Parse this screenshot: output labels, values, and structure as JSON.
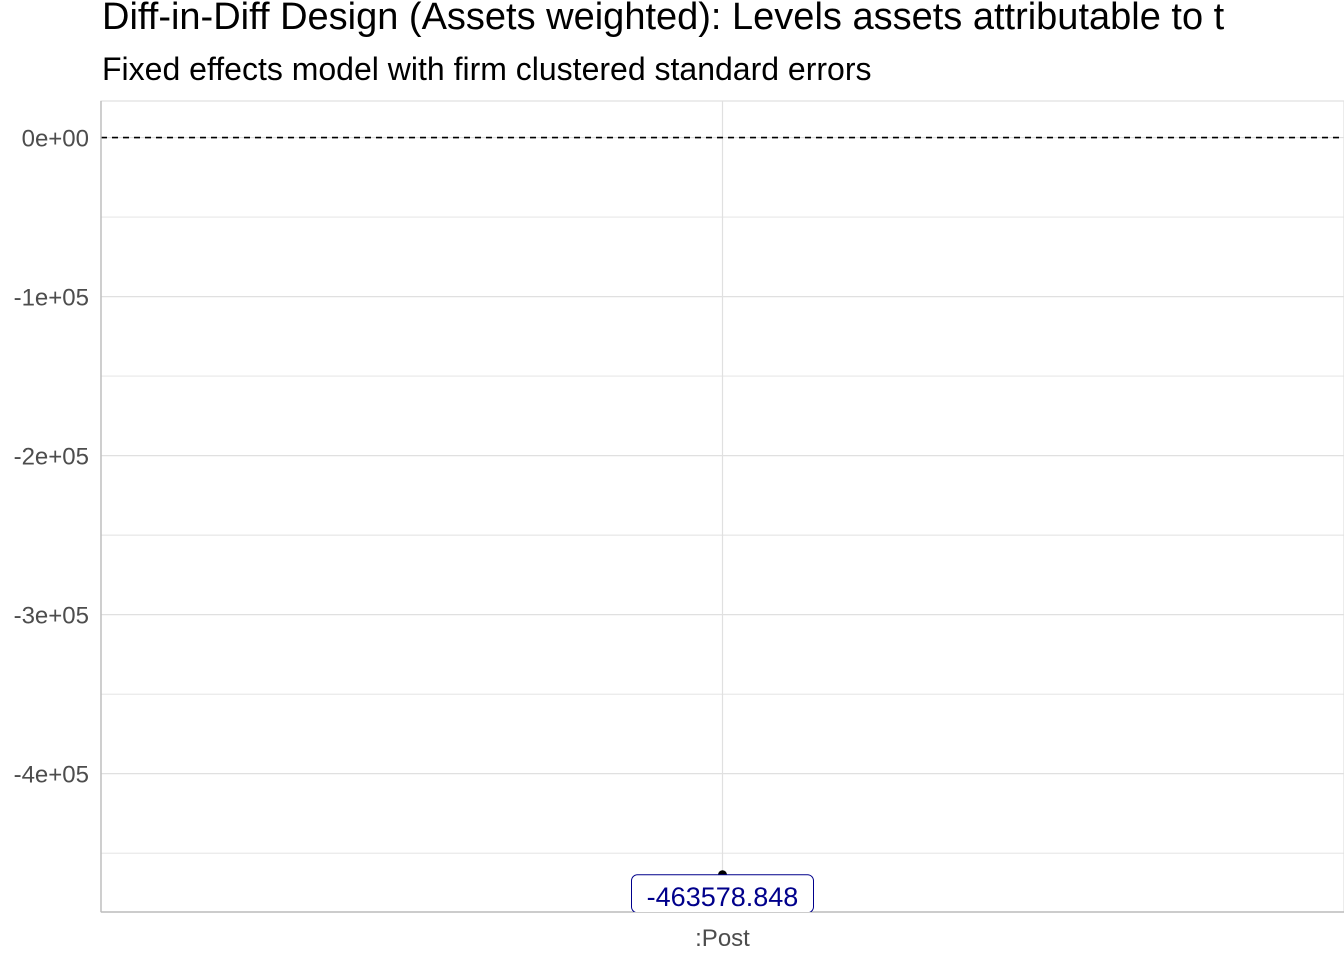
{
  "chart_data": {
    "type": "scatter",
    "title": "Diff-in-Diff Design (Assets weighted): Levels assets attributable to t",
    "subtitle": "Fixed effects model with firm clustered standard errors",
    "xlabel": "",
    "ylabel": "",
    "categories": [
      ":Post"
    ],
    "values": [
      -463578.848
    ],
    "data_labels": [
      "-463578.848"
    ],
    "ylim": [
      -487000,
      23000
    ],
    "yticks": [
      0,
      -100000,
      -200000,
      -300000,
      -400000
    ],
    "ytick_labels": [
      "0e+00",
      "-1e+05",
      "-2e+05",
      "-3e+05",
      "-4e+05"
    ],
    "reference_line": 0,
    "grid": true,
    "legend": "none",
    "colors": {
      "point": "#000000",
      "label_text": "#00008b",
      "grid": "#e0e0e0",
      "axis_text": "#4d4d4d"
    }
  }
}
